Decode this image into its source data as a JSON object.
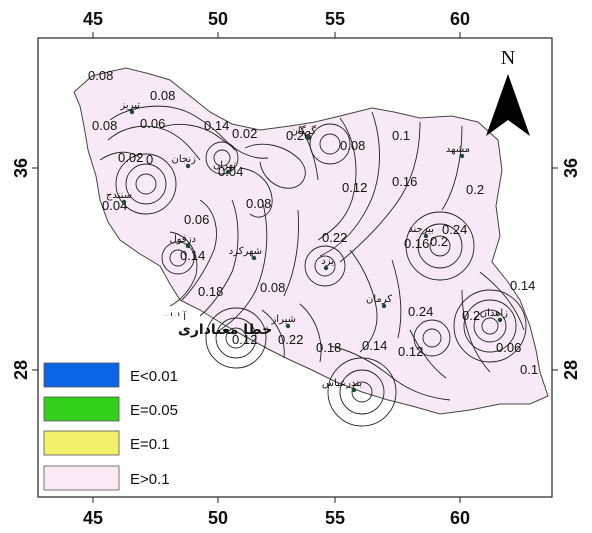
{
  "map": {
    "x_ticks": [
      "45",
      "50",
      "55",
      "60"
    ],
    "y_ticks": [
      "36",
      "28"
    ],
    "north_label": "N",
    "contour_labels": [
      "0.08",
      "0.08",
      "0.08",
      "0.06",
      "0.14",
      "0.02",
      "0.26",
      "0.08",
      "0.1",
      "0.02",
      "0",
      "0.04",
      "0.04",
      "0.08",
      "0.06",
      "0.12",
      "0.16",
      "0.2",
      "0.2",
      "0.24",
      "0.22",
      "0.16",
      "0.18",
      "0.08",
      "0.14",
      "0.24",
      "0.2",
      "0.06",
      "0.12",
      "0.12",
      "0.22",
      "0.18",
      "0.14",
      "0.1",
      "0.14"
    ],
    "cities": [
      "تبریز",
      "زنجان",
      "تهران",
      "گرگان",
      "مشهد",
      "سنندج",
      "دزفول",
      "شهرکرد",
      "یزد",
      "بیرجند",
      "آبادان",
      "شیراز",
      "کرمان",
      "زاهدان",
      "بندرعباس"
    ],
    "legend": {
      "title": "خطا معناداری",
      "items": [
        {
          "label": "E<0.01",
          "color": "#0b63e6"
        },
        {
          "label": "E=0.05",
          "color": "#33d11c"
        },
        {
          "label": "E=0.1",
          "color": "#f3f06a"
        },
        {
          "label": "E>0.1",
          "color": "#fbeaf6"
        }
      ]
    },
    "colors": {
      "land_fill": "#f7eaf6",
      "frame": "#222222",
      "contour": "#222222"
    }
  }
}
